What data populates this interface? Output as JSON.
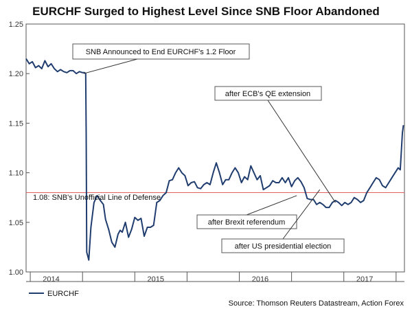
{
  "chart_data": {
    "type": "line",
    "title": "EURCHF Surged to Highest Level Since SNB Floor Abandoned",
    "xlabel": "",
    "ylabel": "",
    "xlim": [
      2013.76,
      2017.38
    ],
    "ylim": [
      1.0,
      1.25
    ],
    "y_ticks": [
      {
        "value": 1.0,
        "label": "1.00"
      },
      {
        "value": 1.05,
        "label": "1.05"
      },
      {
        "value": 1.1,
        "label": "1.10"
      },
      {
        "value": 1.15,
        "label": "1.15"
      },
      {
        "value": 1.2,
        "label": "1.20"
      },
      {
        "value": 1.25,
        "label": "1.25"
      }
    ],
    "x_labels": [
      {
        "value": 2014.0,
        "label": "2014"
      },
      {
        "value": 2015.0,
        "label": "2015"
      },
      {
        "value": 2016.0,
        "label": "2016"
      },
      {
        "value": 2017.0,
        "label": "2017"
      }
    ],
    "x_ticks": [
      2013.8,
      2014.3,
      2014.8,
      2015.3,
      2015.8,
      2016.3,
      2016.8,
      2017.3
    ],
    "reference_line": {
      "value": 1.08,
      "label": "1.08: SNB's Unofficial Line of Defense",
      "color": "#e06060"
    },
    "series": [
      {
        "name": "EURCHF",
        "color": "#1f3c6e",
        "x": [
          2013.76,
          2013.79,
          2013.82,
          2013.85,
          2013.88,
          2013.91,
          2013.94,
          2013.97,
          2014.0,
          2014.03,
          2014.06,
          2014.09,
          2014.12,
          2014.15,
          2014.18,
          2014.21,
          2014.24,
          2014.27,
          2014.3,
          2014.32,
          2014.33,
          2014.335,
          2014.34,
          2014.36,
          2014.38,
          2014.41,
          2014.44,
          2014.47,
          2014.5,
          2014.52,
          2014.55,
          2014.58,
          2014.61,
          2014.64,
          2014.66,
          2014.68,
          2014.71,
          2014.74,
          2014.77,
          2014.8,
          2014.83,
          2014.86,
          2014.89,
          2014.92,
          2014.95,
          2014.98,
          2015.01,
          2015.04,
          2015.07,
          2015.1,
          2015.13,
          2015.16,
          2015.19,
          2015.22,
          2015.25,
          2015.28,
          2015.31,
          2015.34,
          2015.37,
          2015.4,
          2015.43,
          2015.46,
          2015.49,
          2015.52,
          2015.55,
          2015.58,
          2015.61,
          2015.64,
          2015.67,
          2015.7,
          2015.73,
          2015.76,
          2015.79,
          2015.82,
          2015.85,
          2015.88,
          2015.91,
          2015.94,
          2015.97,
          2016.0,
          2016.03,
          2016.06,
          2016.09,
          2016.12,
          2016.15,
          2016.18,
          2016.21,
          2016.24,
          2016.27,
          2016.3,
          2016.33,
          2016.36,
          2016.39,
          2016.42,
          2016.45,
          2016.48,
          2016.51,
          2016.54,
          2016.57,
          2016.6,
          2016.63,
          2016.66,
          2016.69,
          2016.72,
          2016.75,
          2016.78,
          2016.81,
          2016.84,
          2016.87,
          2016.9,
          2016.93,
          2016.96,
          2016.99,
          2017.02,
          2017.05,
          2017.08,
          2017.11,
          2017.14,
          2017.17,
          2017.2,
          2017.23,
          2017.26,
          2017.29,
          2017.32,
          2017.34,
          2017.36,
          2017.37
        ],
        "values": [
          1.215,
          1.21,
          1.212,
          1.206,
          1.208,
          1.205,
          1.213,
          1.207,
          1.21,
          1.205,
          1.202,
          1.204,
          1.202,
          1.201,
          1.203,
          1.203,
          1.2,
          1.202,
          1.201,
          1.201,
          1.2,
          1.14,
          1.02,
          1.012,
          1.045,
          1.07,
          1.077,
          1.072,
          1.068,
          1.053,
          1.043,
          1.03,
          1.025,
          1.038,
          1.042,
          1.04,
          1.05,
          1.035,
          1.043,
          1.055,
          1.052,
          1.054,
          1.036,
          1.045,
          1.045,
          1.047,
          1.07,
          1.072,
          1.077,
          1.08,
          1.092,
          1.093,
          1.1,
          1.105,
          1.1,
          1.097,
          1.087,
          1.09,
          1.091,
          1.085,
          1.084,
          1.088,
          1.09,
          1.088,
          1.1,
          1.11,
          1.1,
          1.088,
          1.093,
          1.093,
          1.1,
          1.105,
          1.1,
          1.09,
          1.096,
          1.093,
          1.107,
          1.1,
          1.093,
          1.097,
          1.083,
          1.085,
          1.087,
          1.092,
          1.09,
          1.09,
          1.095,
          1.09,
          1.095,
          1.086,
          1.092,
          1.095,
          1.091,
          1.085,
          1.074,
          1.073,
          1.073,
          1.068,
          1.07,
          1.068,
          1.065,
          1.065,
          1.07,
          1.072,
          1.07,
          1.067,
          1.07,
          1.068,
          1.07,
          1.075,
          1.073,
          1.07,
          1.072,
          1.08,
          1.085,
          1.09,
          1.095,
          1.093,
          1.087,
          1.085,
          1.09,
          1.095,
          1.1,
          1.105,
          1.103,
          1.14,
          1.148
        ]
      }
    ],
    "legend": {
      "position": "bottom-left",
      "entries": [
        "EURCHF"
      ]
    },
    "annotations": [
      {
        "text": "SNB Announced to End EURCHF's 1.2 Floor",
        "point": [
          2014.31,
          1.2
        ]
      },
      {
        "text": "after ECB's QE extension",
        "point": [
          2016.72,
          1.07
        ]
      },
      {
        "text": "after Brexit referendum",
        "point": [
          2016.35,
          1.077
        ]
      },
      {
        "text": "after US presidential election",
        "point": [
          2016.57,
          1.083
        ]
      }
    ],
    "source": "Source: Thomson Reuters Datastream, Action Forex"
  }
}
